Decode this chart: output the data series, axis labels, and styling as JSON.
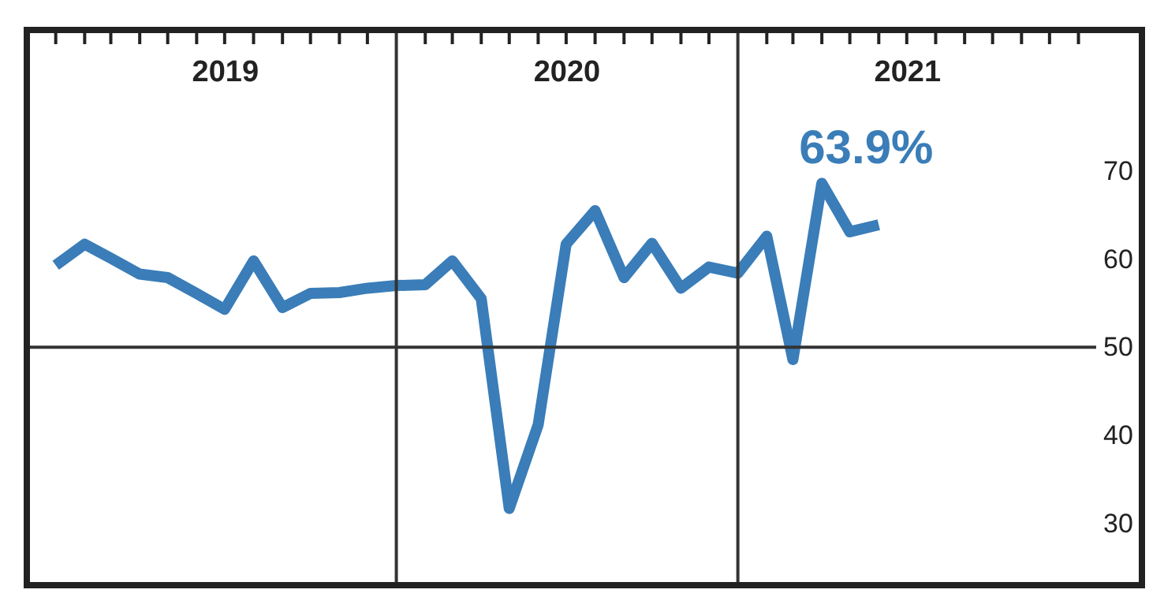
{
  "chart_data": {
    "type": "line",
    "x": [
      "2019-01",
      "2019-02",
      "2019-03",
      "2019-04",
      "2019-05",
      "2019-06",
      "2019-07",
      "2019-08",
      "2019-09",
      "2019-10",
      "2019-11",
      "2019-12",
      "2020-01",
      "2020-02",
      "2020-03",
      "2020-04",
      "2020-05",
      "2020-06",
      "2020-07",
      "2020-08",
      "2020-09",
      "2020-10",
      "2020-11",
      "2020-12",
      "2021-01",
      "2021-02",
      "2021-03",
      "2021-04",
      "2021-05",
      "2021-06"
    ],
    "series": [
      {
        "color": "#3a7db8",
        "values": [
          59.3,
          61.7,
          60.1,
          58.3,
          57.9,
          56.1,
          54.3,
          59.8,
          54.5,
          56.1,
          56.2,
          56.7,
          57.0,
          57.1,
          59.8,
          55.5,
          31.7,
          41.2,
          61.7,
          65.5,
          57.9,
          61.8,
          56.7,
          59.1,
          58.4,
          62.6,
          48.6,
          68.6,
          63.1,
          63.9
        ]
      }
    ],
    "xlim": [
      "2018-12",
      "2022-01-20"
    ],
    "xticks": [
      {
        "value": "2019-01",
        "label": null
      },
      {
        "value": "2019-02",
        "label": null
      },
      {
        "value": "2019-03",
        "label": null
      },
      {
        "value": "2019-04",
        "label": null
      },
      {
        "value": "2019-05",
        "label": null
      },
      {
        "value": "2019-06",
        "label": null
      },
      {
        "value": "2019-07",
        "label": "2019"
      },
      {
        "value": "2019-08",
        "label": null
      },
      {
        "value": "2019-09",
        "label": null
      },
      {
        "value": "2019-10",
        "label": null
      },
      {
        "value": "2019-11",
        "label": null
      },
      {
        "value": "2019-12",
        "label": null
      },
      {
        "value": "2020-02",
        "label": null
      },
      {
        "value": "2020-03",
        "label": null
      },
      {
        "value": "2020-04",
        "label": null
      },
      {
        "value": "2020-05",
        "label": null
      },
      {
        "value": "2020-06",
        "label": null
      },
      {
        "value": "2020-07",
        "label": "2020"
      },
      {
        "value": "2020-08",
        "label": null
      },
      {
        "value": "2020-09",
        "label": null
      },
      {
        "value": "2020-10",
        "label": null
      },
      {
        "value": "2020-11",
        "label": null
      },
      {
        "value": "2020-12",
        "label": null
      },
      {
        "value": "2021-02",
        "label": null
      },
      {
        "value": "2021-03",
        "label": null
      },
      {
        "value": "2021-04",
        "label": null
      },
      {
        "value": "2021-05",
        "label": null
      },
      {
        "value": "2021-06",
        "label": null
      },
      {
        "value": "2021-07",
        "label": "2021"
      },
      {
        "value": "2021-08",
        "label": null
      },
      {
        "value": "2021-09",
        "label": null
      },
      {
        "value": "2021-10",
        "label": null
      },
      {
        "value": "2021-11",
        "label": null
      },
      {
        "value": "2021-12",
        "label": null
      },
      {
        "value": "2022-01",
        "label": null
      }
    ],
    "ylim": [
      23,
      86
    ],
    "yticks": [
      30,
      40,
      50,
      60,
      70
    ],
    "ref_lines": [
      {
        "axis": "y",
        "value": 50,
        "color": "#333333"
      },
      {
        "axis": "x",
        "value": "2020-01",
        "color": "#333333"
      },
      {
        "axis": "x",
        "value": "2021-01",
        "color": "#333333"
      }
    ],
    "annotations": [
      {
        "text": "63.9%",
        "x": "2021-06",
        "y": 63.9
      }
    ],
    "marker": "none",
    "line_style": "solid"
  }
}
